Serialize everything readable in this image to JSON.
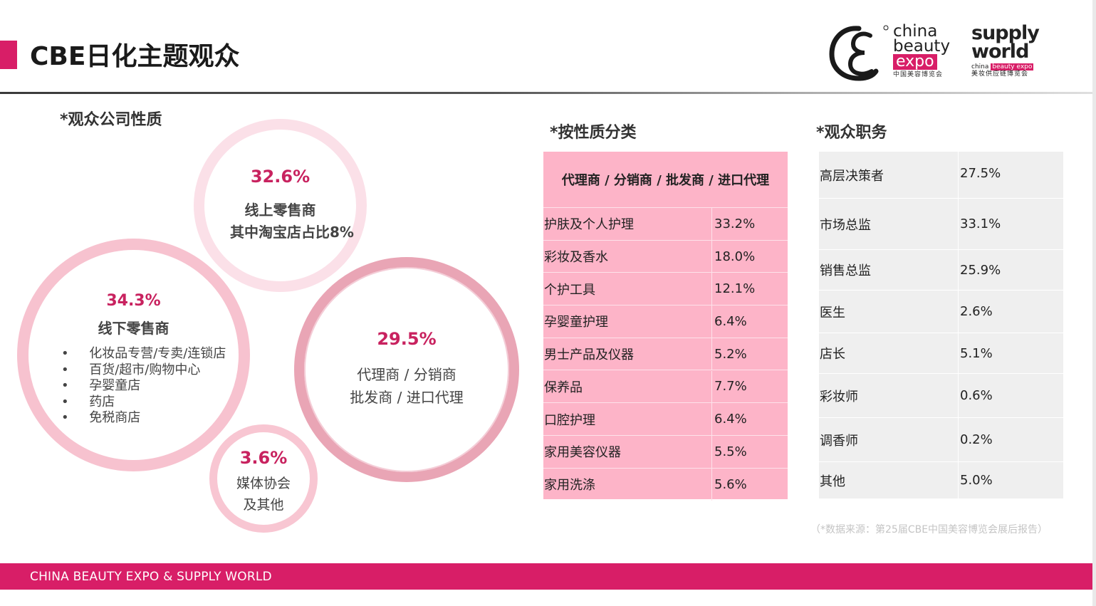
{
  "header": {
    "title": "CBE日化主题观众",
    "logo_cbe": {
      "line1": "china",
      "line2": "beauty",
      "expo": "expo",
      "cn": "中国美容博览会"
    },
    "logo_sw": {
      "line1": "supply",
      "line2": "world",
      "sub_prefix": "china",
      "sub_box": "beauty expo",
      "cn": "美妆供应链博览会"
    }
  },
  "audience_nature": {
    "title": "*观众公司性质",
    "online": {
      "percent": "32.6%",
      "line1": "线上零售商",
      "line2": "其中淘宝店占比8%"
    },
    "offline": {
      "percent": "34.3%",
      "label": "线下零售商",
      "items": [
        "化妆品专营/专卖/连锁店",
        "百货/超市/购物中心",
        "孕婴童店",
        "药店",
        "免税商店"
      ]
    },
    "agents": {
      "percent": "29.5%",
      "line1": "代理商 / 分销商",
      "line2": "批发商 / 进口代理"
    },
    "media": {
      "percent": "3.6%",
      "line1": "媒体协会",
      "line2": "及其他"
    }
  },
  "by_category": {
    "title": "*按性质分类",
    "header": "代理商 / 分销商 / 批发商 / 进口代理",
    "rows": [
      {
        "label": "护肤及个人护理",
        "value": "33.2%"
      },
      {
        "label": "彩妆及香水",
        "value": "18.0%"
      },
      {
        "label": "个护工具",
        "value": "12.1%"
      },
      {
        "label": "孕婴童护理",
        "value": "6.4%"
      },
      {
        "label": "男士产品及仪器",
        "value": "5.2%"
      },
      {
        "label": "保养品",
        "value": "7.7%"
      },
      {
        "label": "口腔护理",
        "value": "6.4%"
      },
      {
        "label": "家用美容仪器",
        "value": "5.5%"
      },
      {
        "label": "家用洗涤",
        "value": "5.6%"
      }
    ]
  },
  "job_titles": {
    "title": "*观众职务",
    "rows": [
      {
        "label": "高层决策者",
        "value": "27.5%"
      },
      {
        "label": "市场总监",
        "value": "33.1%"
      },
      {
        "label": "销售总监",
        "value": "25.9%"
      },
      {
        "label": "医生",
        "value": "2.6%"
      },
      {
        "label": "店长",
        "value": "5.1%"
      },
      {
        "label": "彩妆师",
        "value": "0.6%"
      },
      {
        "label": "调香师",
        "value": "0.2%"
      },
      {
        "label": "其他",
        "value": "5.0%"
      }
    ]
  },
  "source_note": "（*数据来源：第25届CBE中国美容博览会展后报告）",
  "footer": {
    "text": "CHINA BEAUTY EXPO & SUPPLY  WORLD"
  },
  "colors": {
    "accent": "#d81e67",
    "pink_table": "#fdb4c8",
    "grey_table": "#efefef",
    "percent_text": "#c8225f"
  }
}
